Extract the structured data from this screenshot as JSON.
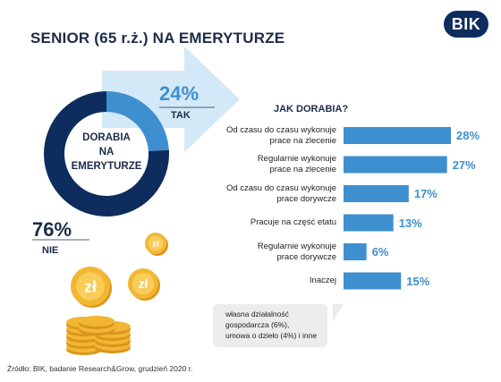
{
  "header": {
    "title": "SENIOR (65 r.ż.) NA EMERYTURZE",
    "logo_text": "BIK"
  },
  "donut": {
    "center_label": "DORABIA\nNA\nEMERYTURZE",
    "yes": {
      "value": 24,
      "percent_label": "24%",
      "label": "TAK",
      "color": "#3e8fd0"
    },
    "no": {
      "value": 76,
      "percent_label": "76%",
      "label": "NIE",
      "color": "#0e2d5e"
    }
  },
  "chart_data": [
    {
      "type": "pie",
      "categories": [
        "TAK",
        "NIE"
      ],
      "values": [
        24,
        76
      ],
      "colors": [
        "#3e8fd0",
        "#0e2d5e"
      ],
      "title": ""
    },
    {
      "type": "bar",
      "orientation": "horizontal",
      "title": "JAK DORABIA?",
      "categories": [
        "Od czasu do czasu wykonuje prace na zlecenie",
        "Regularnie wykonuje prace na zlecenie",
        "Od czasu do czasu wykonuje prace dorywcze",
        "Pracuje na część etatu",
        "Regularnie wykonuje prace dorywcze",
        "Inaczej"
      ],
      "values": [
        28,
        27,
        17,
        13,
        6,
        15
      ],
      "value_labels": [
        "28%",
        "27%",
        "17%",
        "13%",
        "6%",
        "15%"
      ],
      "bar_color": "#3e8fd0",
      "xlim": [
        0,
        28
      ]
    }
  ],
  "bars": {
    "title": "JAK DORABIA?",
    "items": [
      {
        "line1": "Od czasu do czasu wykonuje",
        "line2": "prace na zlecenie",
        "value": 28,
        "label": "28%"
      },
      {
        "line1": "Regularnie wykonuje",
        "line2": "prace na zlecenie",
        "value": 27,
        "label": "27%"
      },
      {
        "line1": "Od czasu do czasu wykonuje",
        "line2": "prace dorywcze",
        "value": 17,
        "label": "17%"
      },
      {
        "line1": "",
        "line2": "Pracuje na część etatu",
        "value": 13,
        "label": "13%"
      },
      {
        "line1": "Regularnie wykonuje",
        "line2": "prace dorywcze",
        "value": 6,
        "label": "6%"
      },
      {
        "line1": "",
        "line2": "Inaczej",
        "value": 15,
        "label": "15%"
      }
    ]
  },
  "note": {
    "line1": "własna działalność",
    "line2": "gospodarcza (6%),",
    "line3": "umowa o dzieło (4%) i inne"
  },
  "coin_label": "zł",
  "source": "Źródło: BIK, badanie Research&Grow, grudzień 2020 r."
}
